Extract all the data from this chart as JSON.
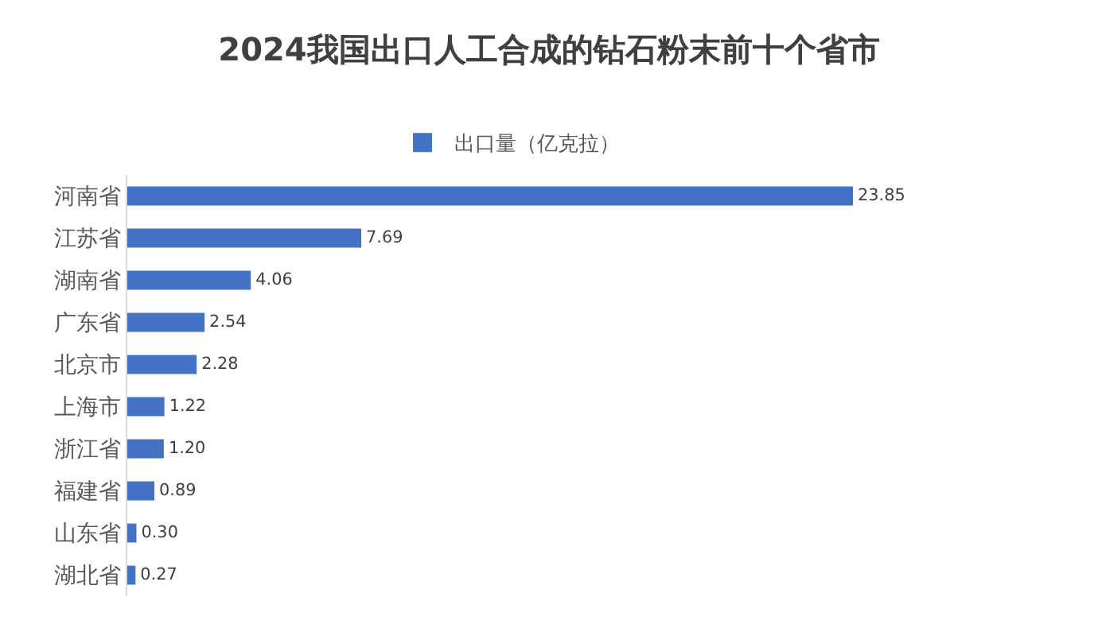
{
  "chart_data": {
    "type": "bar",
    "orientation": "horizontal",
    "title": "2024我国出口人工合成的钻石粉末前十个省市",
    "categories": [
      "河南省",
      "江苏省",
      "湖南省",
      "广东省",
      "北京市",
      "上海市",
      "浙江省",
      "福建省",
      "山东省",
      "湖北省"
    ],
    "series": [
      {
        "name": "出口量（亿克拉）",
        "color": "#4472c4",
        "values": [
          23.85,
          7.69,
          4.06,
          2.54,
          2.28,
          1.22,
          1.2,
          0.89,
          0.3,
          0.27
        ],
        "value_labels": [
          "23.85",
          "7.69",
          "4.06",
          "2.54",
          "2.28",
          "1.22",
          "1.20",
          "0.89",
          "0.30",
          "0.27"
        ]
      }
    ],
    "legend": "top",
    "tick_labels": "y",
    "grid": false
  }
}
